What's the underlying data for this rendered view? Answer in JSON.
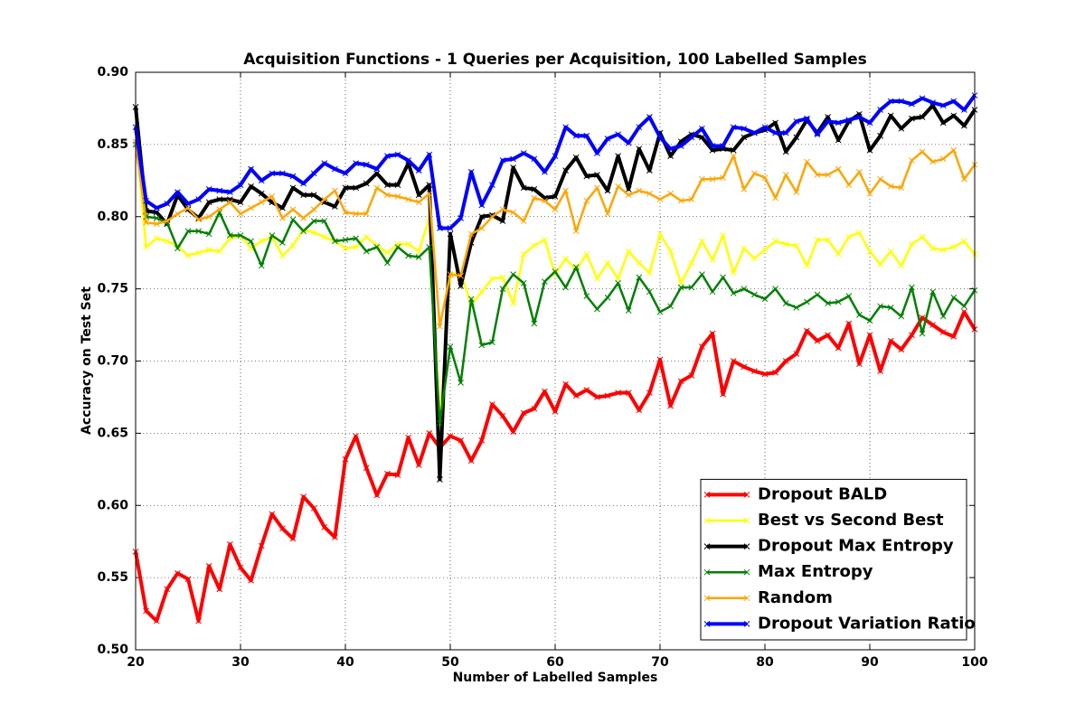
{
  "chart_data": {
    "type": "line",
    "title": "Acquisition Functions - 1 Queries per Acquisition, 100 Labelled Samples",
    "x_label": "Number of Labelled Samples",
    "y_label": "Accuracy on Test Set",
    "x": [
      20,
      21,
      22,
      23,
      24,
      25,
      26,
      27,
      28,
      29,
      30,
      31,
      32,
      33,
      34,
      35,
      36,
      37,
      38,
      39,
      40,
      41,
      42,
      43,
      44,
      45,
      46,
      47,
      48,
      49,
      50,
      51,
      52,
      53,
      54,
      55,
      56,
      57,
      58,
      59,
      60,
      61,
      62,
      63,
      64,
      65,
      66,
      67,
      68,
      69,
      70,
      71,
      72,
      73,
      74,
      75,
      76,
      77,
      78,
      79,
      80,
      81,
      82,
      83,
      84,
      85,
      86,
      87,
      88,
      89,
      90,
      91,
      92,
      93,
      94,
      95,
      96,
      97,
      98,
      99,
      100
    ],
    "xlim": [
      20,
      100
    ],
    "xticks": [
      20,
      30,
      40,
      50,
      60,
      70,
      80,
      90,
      100
    ],
    "ylim": [
      0.5,
      0.9
    ],
    "yticks": [
      {
        "value": 0.5,
        "label": "0.50"
      },
      {
        "value": 0.55,
        "label": "0.55"
      },
      {
        "value": 0.6,
        "label": "0.60"
      },
      {
        "value": 0.65,
        "label": "0.65"
      },
      {
        "value": 0.7,
        "label": "0.70"
      },
      {
        "value": 0.75,
        "label": "0.75"
      },
      {
        "value": 0.8,
        "label": "0.80"
      },
      {
        "value": 0.85,
        "label": "0.85"
      },
      {
        "value": 0.9,
        "label": "0.90"
      }
    ],
    "grid": true,
    "legend": "lower right",
    "series": [
      {
        "name": "Dropout BALD",
        "color": "#ff0000",
        "values": [
          0.568,
          0.527,
          0.52,
          0.542,
          0.553,
          0.549,
          0.52,
          0.558,
          0.542,
          0.573,
          0.557,
          0.548,
          0.572,
          0.594,
          0.584,
          0.577,
          0.606,
          0.598,
          0.585,
          0.578,
          0.632,
          0.648,
          0.626,
          0.607,
          0.622,
          0.621,
          0.647,
          0.628,
          0.65,
          0.64,
          0.648,
          0.645,
          0.631,
          0.645,
          0.67,
          0.662,
          0.651,
          0.664,
          0.667,
          0.679,
          0.665,
          0.684,
          0.676,
          0.68,
          0.675,
          0.676,
          0.678,
          0.678,
          0.666,
          0.678,
          0.701,
          0.669,
          0.686,
          0.69,
          0.71,
          0.719,
          0.677,
          0.7,
          0.696,
          0.693,
          0.691,
          0.692,
          0.7,
          0.705,
          0.721,
          0.714,
          0.718,
          0.709,
          0.726,
          0.698,
          0.718,
          0.693,
          0.714,
          0.708,
          0.718,
          0.73,
          0.725,
          0.72,
          0.717,
          0.734,
          0.722
        ]
      },
      {
        "name": "Best vs Second Best",
        "color": "#ffff00",
        "values": [
          0.86,
          0.779,
          0.785,
          0.783,
          0.78,
          0.773,
          0.775,
          0.777,
          0.776,
          0.785,
          0.787,
          0.778,
          0.783,
          0.786,
          0.773,
          0.78,
          0.791,
          0.789,
          0.786,
          0.783,
          0.778,
          0.779,
          0.786,
          0.78,
          0.775,
          0.781,
          0.781,
          0.776,
          0.799,
          0.656,
          0.76,
          0.761,
          0.739,
          0.748,
          0.757,
          0.758,
          0.74,
          0.774,
          0.78,
          0.784,
          0.76,
          0.771,
          0.763,
          0.774,
          0.757,
          0.768,
          0.757,
          0.776,
          0.768,
          0.761,
          0.788,
          0.776,
          0.754,
          0.768,
          0.783,
          0.77,
          0.787,
          0.761,
          0.778,
          0.771,
          0.777,
          0.783,
          0.781,
          0.78,
          0.766,
          0.784,
          0.784,
          0.774,
          0.786,
          0.789,
          0.776,
          0.767,
          0.776,
          0.766,
          0.781,
          0.786,
          0.778,
          0.777,
          0.779,
          0.783,
          0.774
        ]
      },
      {
        "name": "Dropout Max Entropy",
        "color": "#000000",
        "values": [
          0.876,
          0.804,
          0.803,
          0.795,
          0.815,
          0.805,
          0.799,
          0.81,
          0.812,
          0.812,
          0.81,
          0.821,
          0.816,
          0.81,
          0.806,
          0.82,
          0.815,
          0.815,
          0.81,
          0.807,
          0.82,
          0.82,
          0.823,
          0.83,
          0.822,
          0.822,
          0.837,
          0.815,
          0.822,
          0.618,
          0.788,
          0.752,
          0.782,
          0.8,
          0.801,
          0.797,
          0.834,
          0.82,
          0.819,
          0.813,
          0.814,
          0.832,
          0.841,
          0.828,
          0.829,
          0.818,
          0.842,
          0.819,
          0.847,
          0.832,
          0.858,
          0.842,
          0.852,
          0.857,
          0.855,
          0.846,
          0.847,
          0.846,
          0.855,
          0.858,
          0.86,
          0.865,
          0.845,
          0.855,
          0.867,
          0.858,
          0.869,
          0.853,
          0.866,
          0.871,
          0.846,
          0.856,
          0.87,
          0.861,
          0.868,
          0.869,
          0.877,
          0.865,
          0.87,
          0.863,
          0.874
        ]
      },
      {
        "name": "Max Entropy",
        "color": "#008000",
        "values": [
          0.85,
          0.8,
          0.799,
          0.796,
          0.778,
          0.79,
          0.79,
          0.788,
          0.803,
          0.787,
          0.787,
          0.783,
          0.766,
          0.787,
          0.782,
          0.798,
          0.79,
          0.797,
          0.797,
          0.783,
          0.784,
          0.785,
          0.776,
          0.779,
          0.768,
          0.779,
          0.773,
          0.772,
          0.779,
          0.657,
          0.71,
          0.685,
          0.743,
          0.711,
          0.713,
          0.75,
          0.76,
          0.754,
          0.726,
          0.755,
          0.762,
          0.751,
          0.765,
          0.745,
          0.736,
          0.744,
          0.754,
          0.735,
          0.758,
          0.748,
          0.734,
          0.738,
          0.751,
          0.751,
          0.76,
          0.748,
          0.758,
          0.747,
          0.75,
          0.746,
          0.743,
          0.75,
          0.74,
          0.737,
          0.741,
          0.746,
          0.74,
          0.741,
          0.745,
          0.732,
          0.728,
          0.738,
          0.737,
          0.731,
          0.751,
          0.719,
          0.748,
          0.731,
          0.744,
          0.738,
          0.749
        ]
      },
      {
        "name": "Random",
        "color": "#ffa500",
        "values": [
          0.852,
          0.796,
          0.795,
          0.797,
          0.802,
          0.806,
          0.798,
          0.8,
          0.805,
          0.81,
          0.802,
          0.806,
          0.81,
          0.814,
          0.799,
          0.805,
          0.799,
          0.805,
          0.812,
          0.818,
          0.803,
          0.802,
          0.802,
          0.82,
          0.815,
          0.814,
          0.812,
          0.81,
          0.816,
          0.724,
          0.76,
          0.759,
          0.788,
          0.792,
          0.8,
          0.805,
          0.803,
          0.797,
          0.813,
          0.811,
          0.805,
          0.818,
          0.79,
          0.811,
          0.82,
          0.802,
          0.821,
          0.815,
          0.818,
          0.816,
          0.812,
          0.816,
          0.811,
          0.812,
          0.826,
          0.826,
          0.827,
          0.842,
          0.819,
          0.83,
          0.827,
          0.813,
          0.829,
          0.817,
          0.838,
          0.829,
          0.829,
          0.833,
          0.822,
          0.831,
          0.816,
          0.826,
          0.821,
          0.82,
          0.839,
          0.845,
          0.838,
          0.84,
          0.846,
          0.826,
          0.836
        ]
      },
      {
        "name": "Dropout Variation Ratio",
        "color": "#0000ff",
        "values": [
          0.862,
          0.811,
          0.806,
          0.809,
          0.817,
          0.809,
          0.812,
          0.819,
          0.818,
          0.817,
          0.822,
          0.833,
          0.825,
          0.83,
          0.83,
          0.828,
          0.823,
          0.83,
          0.837,
          0.833,
          0.83,
          0.837,
          0.836,
          0.833,
          0.842,
          0.843,
          0.839,
          0.832,
          0.843,
          0.792,
          0.792,
          0.799,
          0.831,
          0.808,
          0.822,
          0.839,
          0.84,
          0.844,
          0.84,
          0.831,
          0.842,
          0.862,
          0.856,
          0.856,
          0.844,
          0.854,
          0.857,
          0.851,
          0.862,
          0.869,
          0.855,
          0.847,
          0.849,
          0.855,
          0.861,
          0.849,
          0.849,
          0.862,
          0.861,
          0.858,
          0.862,
          0.858,
          0.858,
          0.866,
          0.868,
          0.857,
          0.866,
          0.865,
          0.867,
          0.869,
          0.865,
          0.874,
          0.88,
          0.88,
          0.878,
          0.882,
          0.879,
          0.877,
          0.88,
          0.874,
          0.884
        ]
      }
    ]
  }
}
